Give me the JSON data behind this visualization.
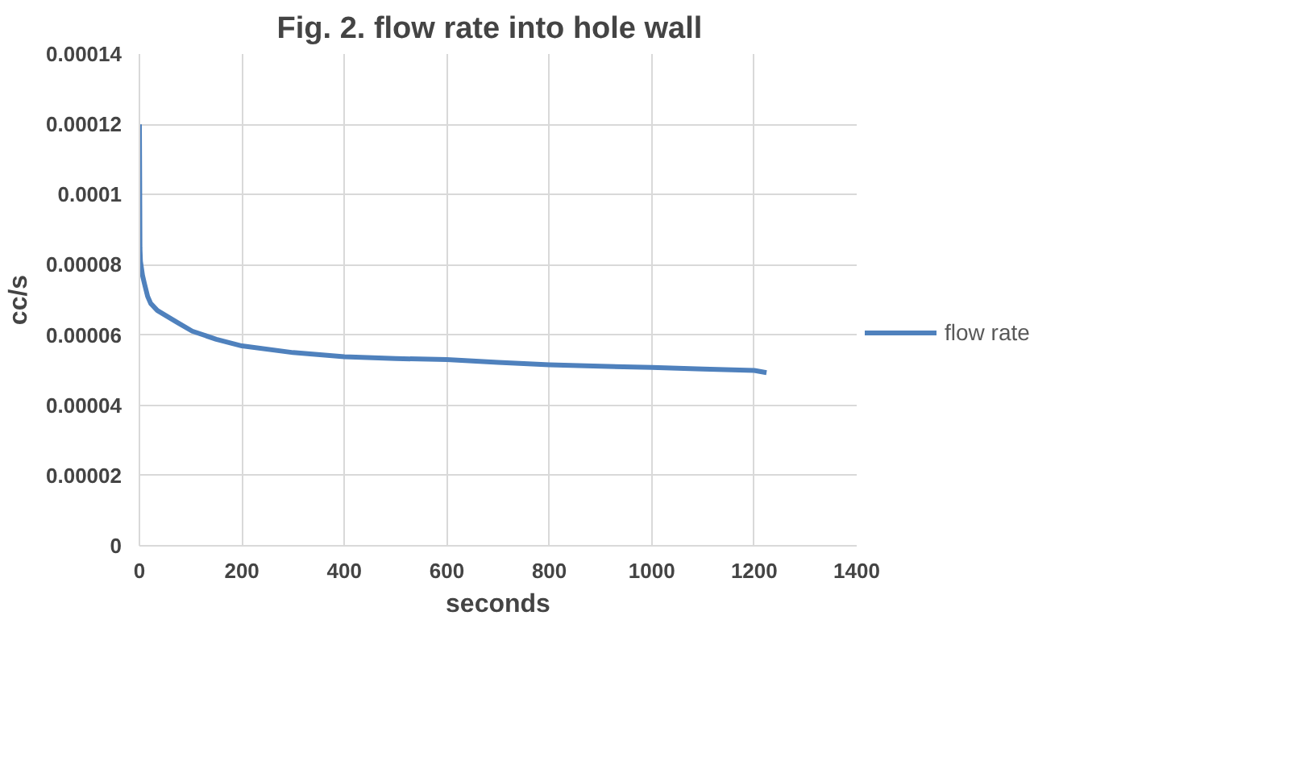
{
  "chart_data": {
    "type": "line",
    "title": "Fig. 2.   flow rate into hole wall",
    "xlabel": "seconds",
    "ylabel": "cc/s",
    "xlim": [
      0,
      1400
    ],
    "xticks": [
      0,
      200,
      400,
      600,
      800,
      1000,
      1200,
      1400
    ],
    "ylim": [
      0,
      0.00014
    ],
    "yticks": [
      {
        "value": 0,
        "label": "0"
      },
      {
        "value": 2e-05,
        "label": "0.00002"
      },
      {
        "value": 4e-05,
        "label": "0.00004"
      },
      {
        "value": 6e-05,
        "label": "0.00006"
      },
      {
        "value": 8e-05,
        "label": "0.00008"
      },
      {
        "value": 0.0001,
        "label": "0.0001"
      },
      {
        "value": 0.00012,
        "label": "0.00012"
      },
      {
        "value": 0.00014,
        "label": "0.00014"
      }
    ],
    "grid": true,
    "legend": "right",
    "marker": "none",
    "line_style": "solid",
    "series": [
      {
        "name": "flow rate",
        "color": "#4f81bd",
        "x": [
          0,
          0.5,
          1,
          2,
          4,
          6,
          10,
          16,
          22,
          35,
          52,
          75,
          103,
          150,
          200,
          300,
          400,
          500,
          600,
          700,
          800,
          900,
          1000,
          1100,
          1200,
          1224
        ],
        "values": [
          0.00012,
          0.000104,
          8.47e-05,
          8.1e-05,
          7.9e-05,
          7.7e-05,
          7.45e-05,
          7.1e-05,
          6.9e-05,
          6.7e-05,
          6.55e-05,
          6.35e-05,
          6.11e-05,
          5.88e-05,
          5.69e-05,
          5.5e-05,
          5.38e-05,
          5.33e-05,
          5.3e-05,
          5.22e-05,
          5.15e-05,
          5.11e-05,
          5.08e-05,
          5.03e-05,
          4.99e-05,
          4.93e-05
        ]
      }
    ]
  }
}
